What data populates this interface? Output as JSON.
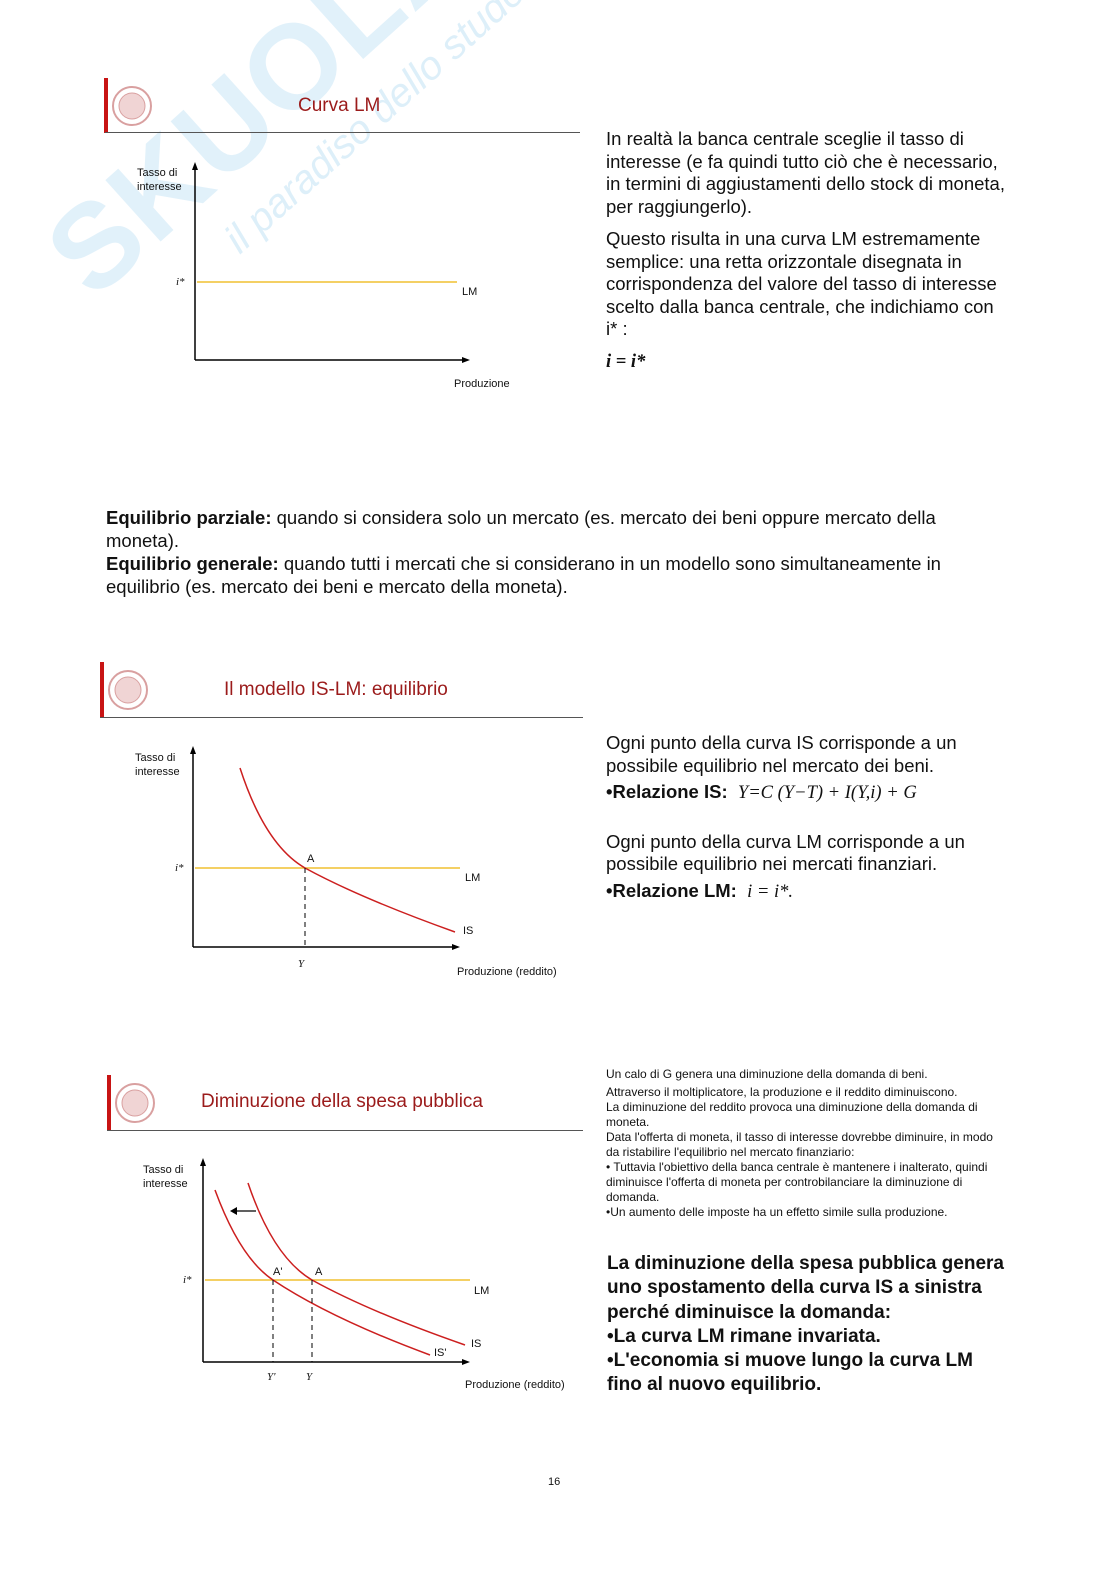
{
  "watermark": {
    "brand": "SKUOLA.net",
    "tagline": "il paradiso dello studente"
  },
  "slide1": {
    "title": "Curva LM",
    "y_axis_label": "Tasso di interesse",
    "x_axis_label": "Produzione",
    "i_star": "i*",
    "lm_label": "LM",
    "text": [
      "In realtà la banca centrale sceglie il tasso di interesse (e fa quindi tutto ciò che è necessario, in termini di aggiustamenti dello stock di moneta, per raggiungerlo).",
      "Questo risulta in una curva LM estremamente semplice: una retta orizzontale disegnata in corrispondenza del valore del tasso di interesse scelto dalla banca centrale, che indichiamo con i* :"
    ],
    "equation": "i = i*"
  },
  "definitions": {
    "partial_term": "Equilibrio parziale:",
    "partial_text": " quando si considera solo un mercato (es. mercato dei beni oppure mercato della moneta).",
    "general_term": "Equilibrio generale:",
    "general_text": " quando tutti i mercati che si considerano in un modello sono simultaneamente in equilibrio (es. mercato dei beni e mercato della moneta)."
  },
  "slide2": {
    "title": "Il modello IS-LM: equilibrio",
    "y_axis_label": "Tasso di interesse",
    "x_axis_label": "Produzione (reddito)",
    "i_star": "i*",
    "lm_label": "LM",
    "is_label": "IS",
    "point_a": "A",
    "y_label": "Y",
    "text1": "Ogni punto della curva IS corrisponde a un possibile equilibrio nel mercato dei beni.",
    "rel_is_label": "•Relazione IS:",
    "rel_is_formula": "Y=C (Y−T) + I(Y,i) + G",
    "text2": "Ogni punto della curva LM corrisponde a un possibile equilibrio nei mercati finanziari.",
    "rel_lm_label": "•Relazione LM:",
    "rel_lm_formula": "i = i*."
  },
  "slide3": {
    "title": "Diminuzione della spesa pubblica",
    "y_axis_label": "Tasso di interesse",
    "x_axis_label": "Produzione (reddito)",
    "i_star": "i*",
    "lm_label": "LM",
    "is_label": "IS",
    "is_prime_label": "IS'",
    "point_a": "A",
    "point_a_prime": "A'",
    "y_label": "Y",
    "y_prime_label": "Y'",
    "notes": [
      "Un calo di G genera una diminuzione della domanda di beni.",
      "Attraverso il moltiplicatore, la produzione e il reddito diminuiscono.",
      "La diminuzione del reddito provoca una diminuzione della domanda di moneta.",
      "Data l'offerta di moneta, il tasso di interesse dovrebbe diminuire, in modo da ristabilire l'equilibrio nel mercato finanziario:",
      "• Tuttavia l'obiettivo della banca centrale è mantenere i inalterato, quindi diminuisce l'offerta di moneta per controbilanciare la diminuzione di domanda.",
      "•Un aumento delle imposte ha un effetto simile sulla produzione."
    ],
    "summary": [
      "La diminuzione della spesa pubblica genera uno spostamento della curva IS a sinistra perché diminuisce la domanda:",
      "•La curva LM rimane invariata.",
      "•L'economia si muove lungo la curva LM fino al nuovo equilibrio."
    ]
  },
  "page_number": "16",
  "colors": {
    "title": "#9b1b1b",
    "lm_line": "#f0c030",
    "is_curve": "#cc1f1f",
    "logo_bar": "#c81414"
  }
}
